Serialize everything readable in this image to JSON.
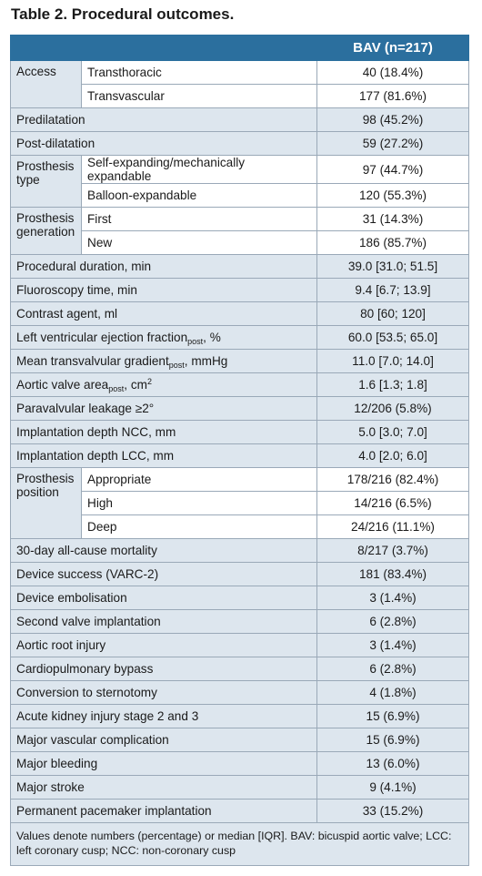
{
  "title": "Table 2. Procedural outcomes.",
  "header": {
    "col_label": "",
    "col_value": "BAV (n=217)"
  },
  "groups": {
    "access": {
      "label": "Access",
      "rows": [
        {
          "label": "Transthoracic",
          "value": "40 (18.4%)"
        },
        {
          "label": "Transvascular",
          "value": "177 (81.6%)"
        }
      ]
    },
    "prosthesis_type": {
      "label": "Prosthesis type",
      "rows": [
        {
          "label": "Self-expanding/mechanically expandable",
          "value": "97 (44.7%)"
        },
        {
          "label": "Balloon-expandable",
          "value": "120 (55.3%)"
        }
      ]
    },
    "prosthesis_generation": {
      "label": "Prosthesis generation",
      "rows": [
        {
          "label": "First",
          "value": "31 (14.3%)"
        },
        {
          "label": "New",
          "value": "186 (85.7%)"
        }
      ]
    },
    "prosthesis_position": {
      "label": "Prosthesis position",
      "rows": [
        {
          "label": "Appropriate",
          "value": "178/216 (82.4%)"
        },
        {
          "label": "High",
          "value": "14/216 (6.5%)"
        },
        {
          "label": "Deep",
          "value": "24/216 (11.1%)"
        }
      ]
    }
  },
  "rows": {
    "predilatation": {
      "label": "Predilatation",
      "value": "98 (45.2%)"
    },
    "post_dilatation": {
      "label": "Post-dilatation",
      "value": "59 (27.2%)"
    },
    "procedural_duration": {
      "label": "Procedural duration, min",
      "value": "39.0 [31.0; 51.5]"
    },
    "fluoroscopy_time": {
      "label": "Fluoroscopy time, min",
      "value": "9.4 [6.7; 13.9]"
    },
    "contrast_agent": {
      "label": "Contrast agent, ml",
      "value": "80 [60; 120]"
    },
    "lvef": {
      "label_main": "Left ventricular ejection fraction",
      "label_sub": "post",
      "label_tail": ", %",
      "value": "60.0 [53.5; 65.0]"
    },
    "mean_gradient": {
      "label_main": "Mean transvalvular gradient",
      "label_sub": "post",
      "label_tail": ", mmHg",
      "value": "11.0 [7.0; 14.0]"
    },
    "aortic_valve_area": {
      "label_main": "Aortic valve area",
      "label_sub": "post",
      "label_tail": ", cm",
      "label_sup": "2",
      "value": "1.6 [1.3; 1.8]"
    },
    "paravalvular_leakage": {
      "label": "Paravalvular leakage ≥2°",
      "value": "12/206 (5.8%)"
    },
    "depth_ncc": {
      "label": "Implantation depth NCC, mm",
      "value": "5.0 [3.0; 7.0]"
    },
    "depth_lcc": {
      "label": "Implantation depth LCC, mm",
      "value": "4.0 [2.0; 6.0]"
    },
    "mortality_30d": {
      "label": "30-day all-cause mortality",
      "value": "8/217 (3.7%)"
    },
    "device_success": {
      "label": "Device success (VARC-2)",
      "value": "181 (83.4%)"
    },
    "device_embolisation": {
      "label": "Device embolisation",
      "value": "3 (1.4%)"
    },
    "second_valve": {
      "label": "Second valve implantation",
      "value": "6 (2.8%)"
    },
    "aortic_root_injury": {
      "label": "Aortic root injury",
      "value": "3 (1.4%)"
    },
    "cardiopulmonary_bypass": {
      "label": "Cardiopulmonary bypass",
      "value": "6 (2.8%)"
    },
    "conversion_sternotomy": {
      "label": "Conversion to sternotomy",
      "value": "4 (1.8%)"
    },
    "aki": {
      "label": "Acute kidney injury stage 2 and 3",
      "value": "15 (6.9%)"
    },
    "major_vascular": {
      "label": "Major vascular complication",
      "value": "15 (6.9%)"
    },
    "major_bleeding": {
      "label": "Major bleeding",
      "value": "13 (6.0%)"
    },
    "major_stroke": {
      "label": "Major stroke",
      "value": "9 (4.1%)"
    },
    "pacemaker": {
      "label": "Permanent pacemaker implantation",
      "value": "33 (15.2%)"
    }
  },
  "footnote": "Values denote numbers (percentage) or median [IQR]. BAV: bicuspid aortic valve; LCC: left coronary cusp; NCC: non-coronary cusp",
  "colors": {
    "header_bg": "#2b6f9e",
    "shade_bg": "#dde6ee",
    "border": "#9aa9b8"
  }
}
